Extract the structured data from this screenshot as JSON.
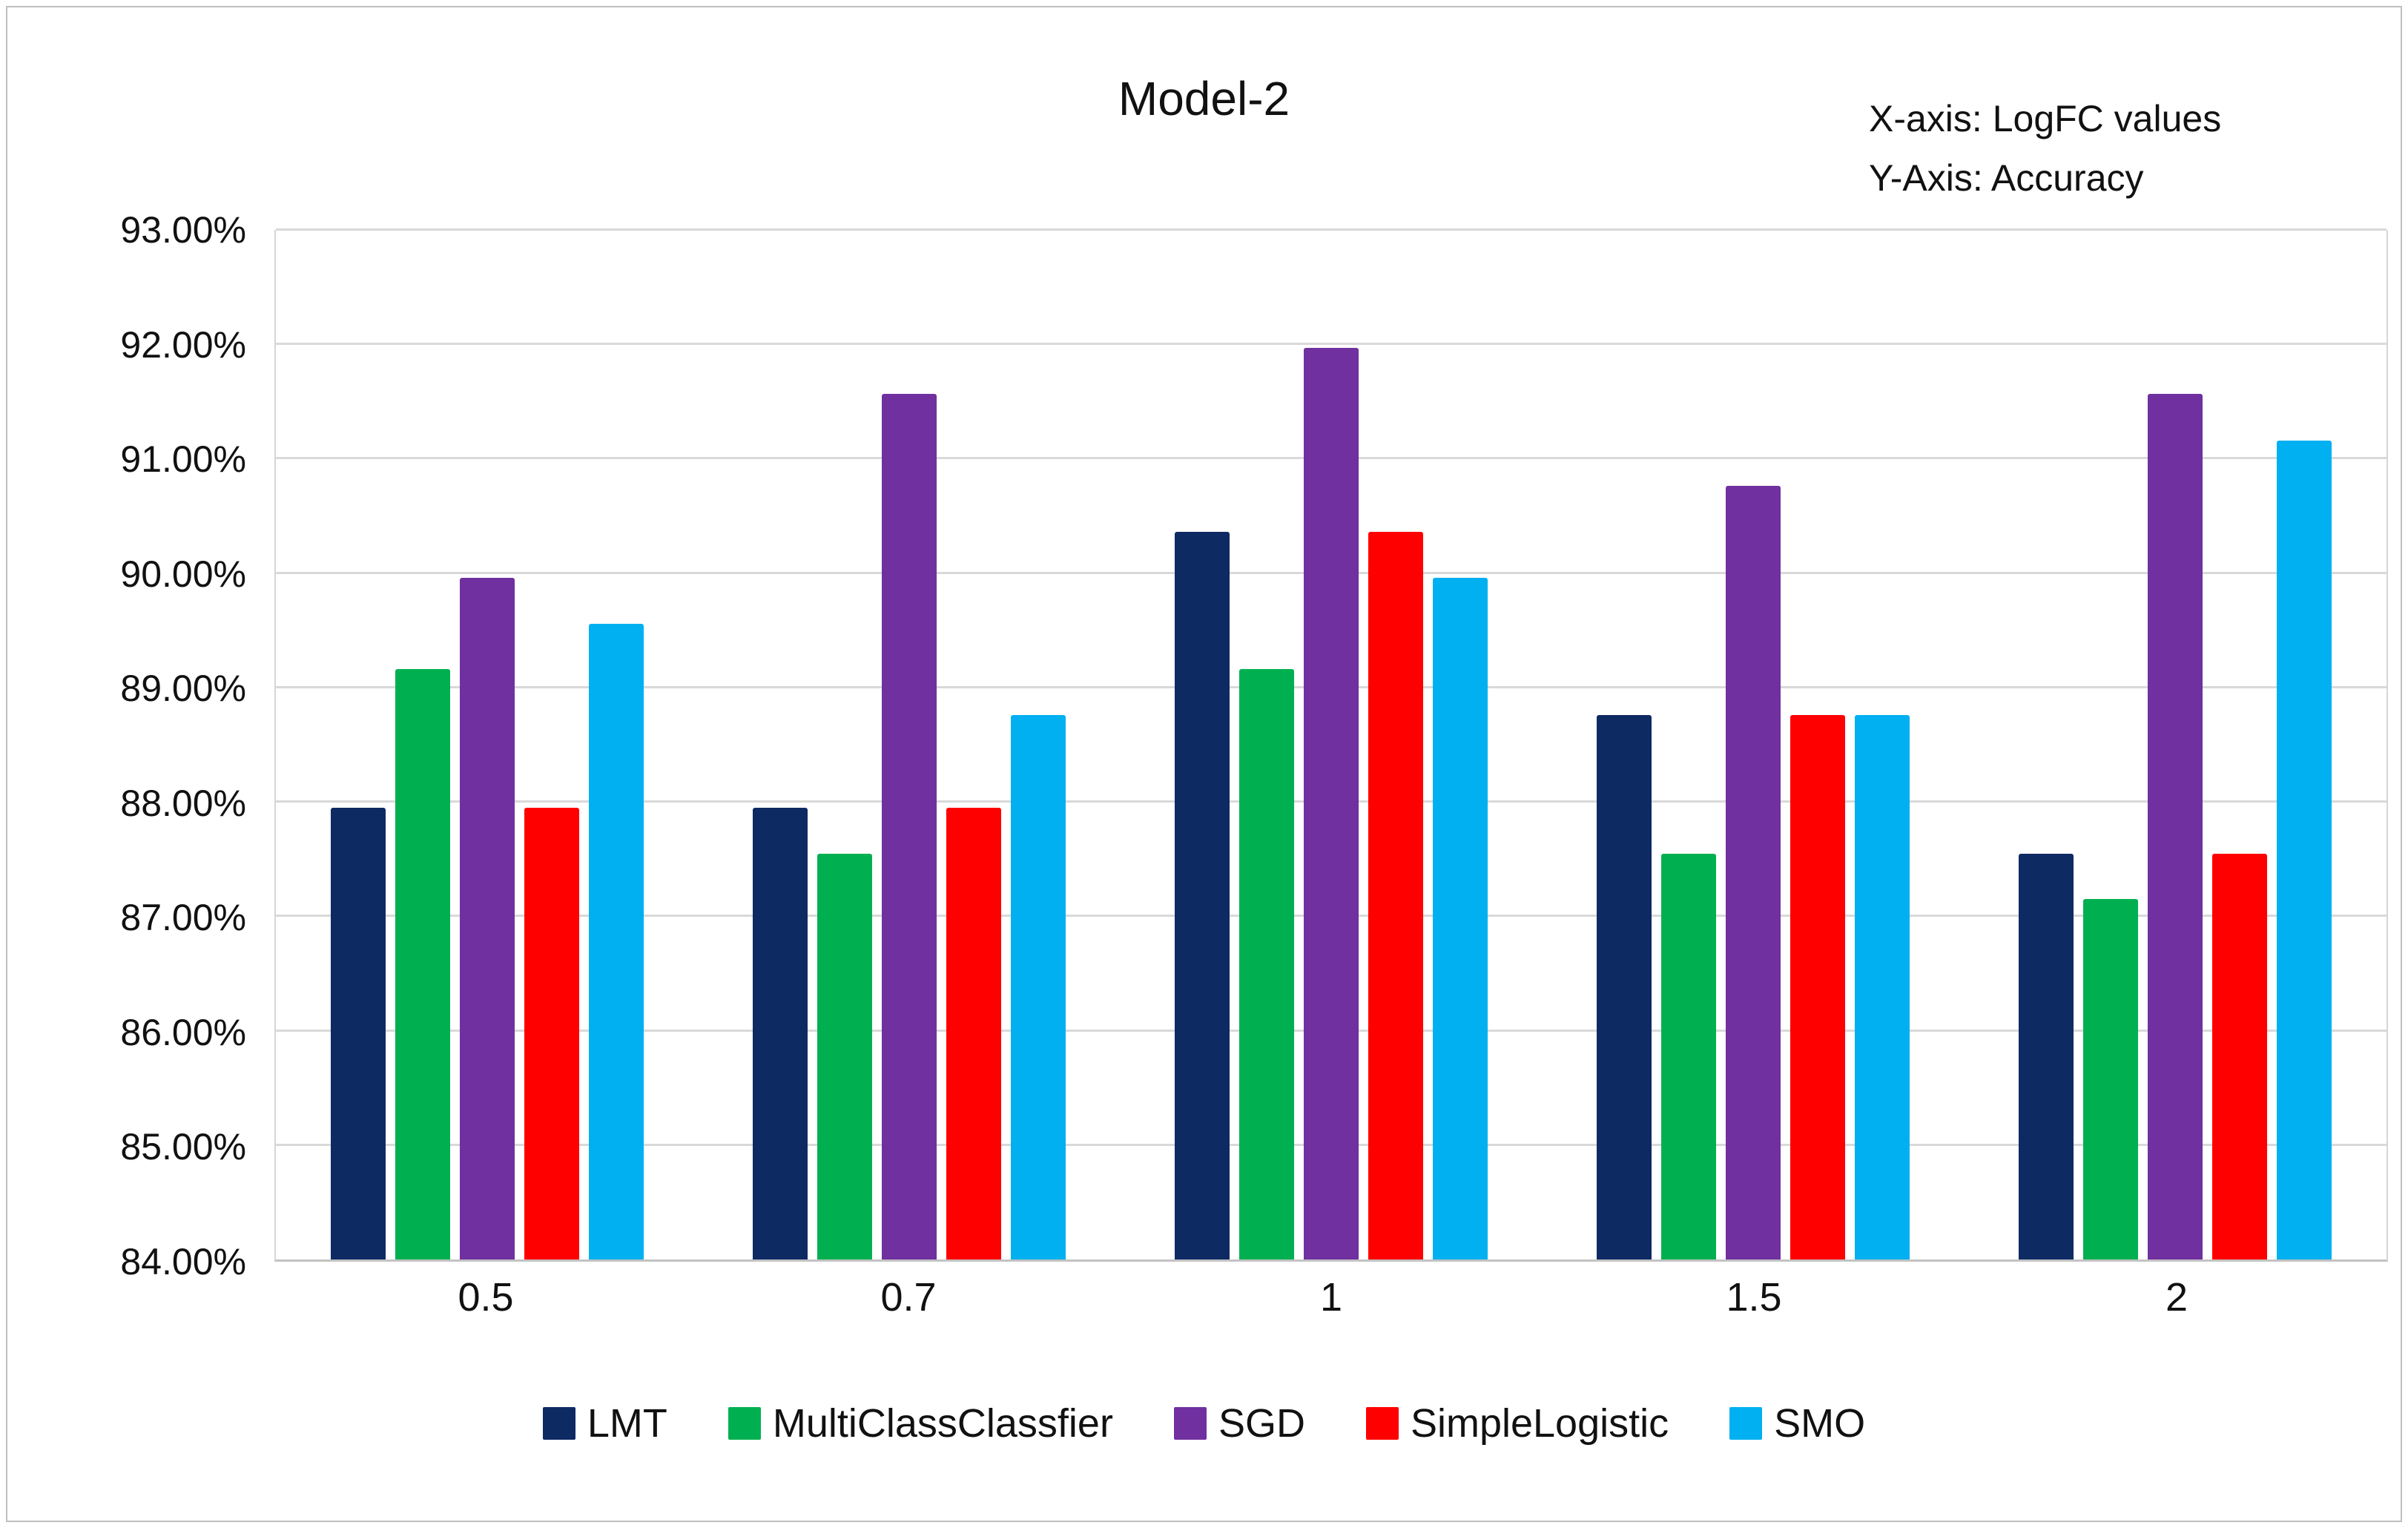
{
  "chart_data": {
    "type": "bar",
    "title": "Model-2",
    "annotations": [
      "X-axis: LogFC values",
      "Y-Axis: Accuracy"
    ],
    "xlabel": "LogFC values",
    "ylabel": "Accuracy",
    "categories": [
      "0.5",
      "0.7",
      "1",
      "1.5",
      "2"
    ],
    "series": [
      {
        "name": "LMT",
        "color": "#0e2a63",
        "values": [
          87.95,
          87.95,
          90.36,
          88.76,
          87.55
        ]
      },
      {
        "name": "MultiClassClassfier",
        "color": "#00b050",
        "values": [
          89.16,
          87.55,
          89.16,
          87.55,
          87.15
        ]
      },
      {
        "name": "SGD",
        "color": "#7030a0",
        "values": [
          89.96,
          91.57,
          91.97,
          90.76,
          91.57
        ]
      },
      {
        "name": "SimpleLogistic",
        "color": "#ff0000",
        "values": [
          87.95,
          87.95,
          90.36,
          88.76,
          87.55
        ]
      },
      {
        "name": "SMO",
        "color": "#00b0f0",
        "values": [
          89.56,
          88.76,
          89.96,
          88.76,
          91.16
        ]
      }
    ],
    "ylim": [
      84,
      93
    ],
    "ytick_step": 1,
    "ytick_labels": [
      "84.00%",
      "85.00%",
      "86.00%",
      "87.00%",
      "88.00%",
      "89.00%",
      "90.00%",
      "91.00%",
      "92.00%",
      "93.00%"
    ],
    "grid": true,
    "legend_position": "bottom",
    "colors": {
      "gridline": "#d9d9d9",
      "axis": "#c3c3c3",
      "frame_border": "#bfbfbf",
      "text": "#111111",
      "background": "#ffffff"
    }
  }
}
